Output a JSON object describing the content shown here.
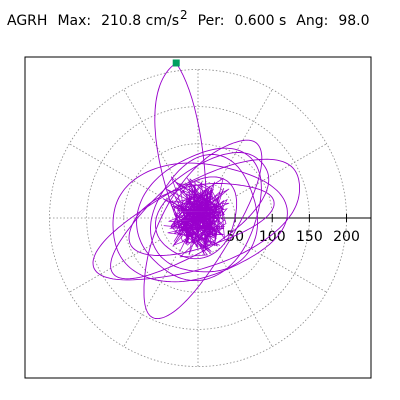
{
  "header": {
    "station": "AGRH",
    "max_label": "Max:",
    "max_value": "210.8",
    "max_unit": "cm/s",
    "max_unit_exp": "2",
    "per_label": "Per:",
    "per_value": "0.600 s",
    "ang_label": "Ang:",
    "ang_value": "98.0"
  },
  "chart_data": {
    "type": "polar-hodogram",
    "title": "AGRH  Max: 210.8 cm/s2  Per: 0.600 s  Ang: 98.0",
    "radial_ticks": [
      50,
      100,
      150,
      200
    ],
    "radial_tick_labels": [
      "50",
      "100",
      "150",
      "200"
    ],
    "rings": [
      50,
      100,
      150,
      200
    ],
    "spokes_deg": [
      0,
      30,
      60,
      90,
      120,
      150,
      180,
      210,
      240,
      270,
      300,
      330
    ],
    "grid": true,
    "max_amplitude": 210.8,
    "max_angle_deg": 98.0,
    "trace_color": "#9900cc",
    "marker_color": "#00a060",
    "grid_color": "#888888",
    "trace_orbits": [
      {
        "a": 100,
        "b": 42,
        "rot": 15,
        "cx": 0,
        "cy": 0
      },
      {
        "a": 150,
        "b": 58,
        "rot": 24,
        "cx": 6,
        "cy": -6
      },
      {
        "a": 125,
        "b": 50,
        "rot": 36,
        "cx": -8,
        "cy": 4
      },
      {
        "a": 95,
        "b": 75,
        "rot": 52,
        "cx": 4,
        "cy": 6
      },
      {
        "a": 118,
        "b": 78,
        "rot": 8,
        "cx": -4,
        "cy": -4
      },
      {
        "a": 80,
        "b": 70,
        "rot": 70,
        "cx": 10,
        "cy": 2
      },
      {
        "a": 135,
        "b": 48,
        "rot": 60,
        "cx": 2,
        "cy": -10
      },
      {
        "a": 60,
        "b": 48,
        "rot": 45,
        "cx": 0,
        "cy": 0
      }
    ]
  }
}
